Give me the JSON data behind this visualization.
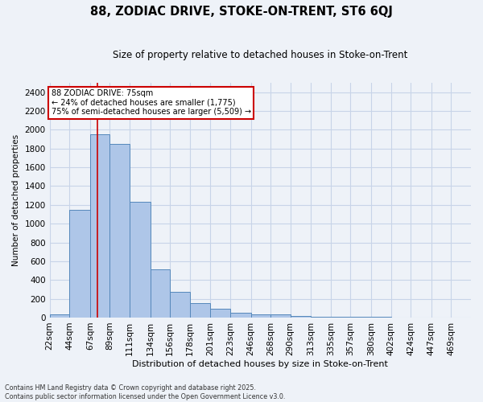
{
  "title": "88, ZODIAC DRIVE, STOKE-ON-TRENT, ST6 6QJ",
  "subtitle": "Size of property relative to detached houses in Stoke-on-Trent",
  "xlabel": "Distribution of detached houses by size in Stoke-on-Trent",
  "ylabel": "Number of detached properties",
  "bin_labels": [
    "22sqm",
    "44sqm",
    "67sqm",
    "89sqm",
    "111sqm",
    "134sqm",
    "156sqm",
    "178sqm",
    "201sqm",
    "223sqm",
    "246sqm",
    "268sqm",
    "290sqm",
    "313sqm",
    "335sqm",
    "357sqm",
    "380sqm",
    "402sqm",
    "424sqm",
    "447sqm",
    "469sqm"
  ],
  "bin_edges": [
    22,
    44,
    67,
    89,
    111,
    134,
    156,
    178,
    201,
    223,
    246,
    268,
    290,
    313,
    335,
    357,
    380,
    402,
    424,
    447,
    469,
    491
  ],
  "bar_heights": [
    30,
    1150,
    1950,
    1850,
    1230,
    515,
    270,
    155,
    90,
    47,
    35,
    35,
    18,
    12,
    8,
    5,
    4,
    3,
    2,
    2,
    1
  ],
  "bar_color": "#aec6e8",
  "bar_edge_color": "#5588bb",
  "grid_color": "#c8d4e8",
  "background_color": "#eef2f8",
  "red_line_x": 75,
  "annotation_text": "88 ZODIAC DRIVE: 75sqm\n← 24% of detached houses are smaller (1,775)\n75% of semi-detached houses are larger (5,509) →",
  "annotation_box_color": "#ffffff",
  "annotation_border_color": "#cc0000",
  "ylim": [
    0,
    2500
  ],
  "yticks": [
    0,
    200,
    400,
    600,
    800,
    1000,
    1200,
    1400,
    1600,
    1800,
    2000,
    2200,
    2400
  ],
  "footer_line1": "Contains HM Land Registry data © Crown copyright and database right 2025.",
  "footer_line2": "Contains public sector information licensed under the Open Government Licence v3.0."
}
